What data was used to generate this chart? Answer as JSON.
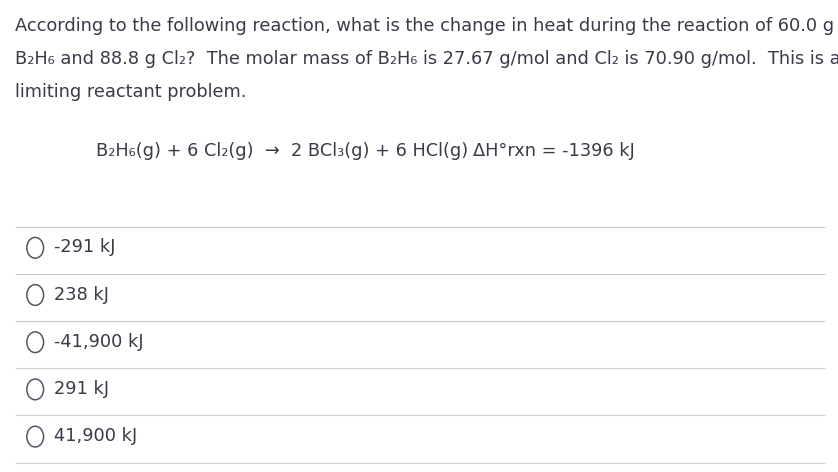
{
  "background_color": "#ffffff",
  "question_line1": "According to the following reaction, what is the change in heat during the reaction of 60.0 g",
  "question_line2": "B₂H₆ and 88.8 g Cl₂?  The molar mass of B₂H₆ is 27.67 g/mol and Cl₂ is 70.90 g/mol.  This is a",
  "question_line3": "limiting reactant problem.",
  "reaction": "B₂H₆(g) + 6 Cl₂(g)  →  2 BCl₃(g) + 6 HCl(g)",
  "delta_h": "ΔH°rxn = -1396 kJ",
  "choices": [
    "-291 kJ",
    "238 kJ",
    "-41,900 kJ",
    "291 kJ",
    "41,900 kJ"
  ],
  "text_color": "#3a3a4a",
  "line_color": "#cccccc",
  "font_size_question": 12.8,
  "font_size_reaction": 12.8,
  "font_size_choices": 12.8,
  "circle_color": "#555566"
}
